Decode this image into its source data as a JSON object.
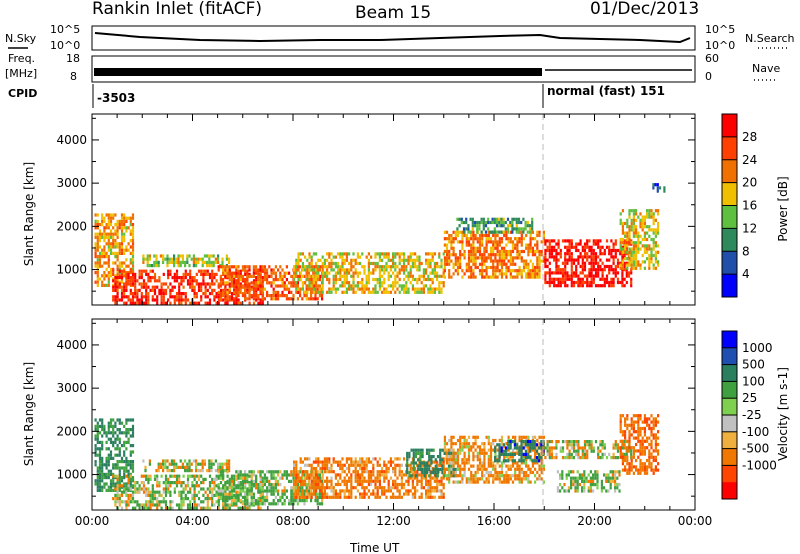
{
  "header": {
    "station": "Rankin Inlet (fitACF)",
    "beam": "Beam 15",
    "date": "01/Dec/2013"
  },
  "status_panel": {
    "nsky_label": "N.Sky",
    "nsearch_label": "N.Search",
    "freq_label_line1": "Freq.",
    "freq_label_line2": "[MHz]",
    "nave_label": "Nave",
    "cpid_label": "CPID",
    "noise_ticks": [
      "10^5",
      "10^0"
    ],
    "freq_ticks": [
      "18",
      "8"
    ],
    "nave_ticks": [
      "60",
      "0"
    ],
    "cpid_segments": [
      {
        "start_hour": 0.0,
        "label": "-3503"
      },
      {
        "start_hour": 18.1,
        "label": "normal (fast) 151"
      }
    ]
  },
  "colors": {
    "power_scale": [
      "#0000ff",
      "#1f4fa8",
      "#2e8a5a",
      "#5fbf3f",
      "#f0c000",
      "#f07000",
      "#ff4000",
      "#ff0000"
    ],
    "velocity_scale": [
      "#ff0000",
      "#ff4500",
      "#f07800",
      "#f0b040",
      "#c0c0c0",
      "#7fd04f",
      "#3fa03f",
      "#2a7f5f",
      "#1f4fb0",
      "#0000ff"
    ]
  },
  "chart_data": [
    {
      "type": "heatmap",
      "title": "",
      "quantity": "Power",
      "xlabel": "",
      "ylabel": "Slant Range [km]",
      "x_unit": "hours UT",
      "xlim": [
        0,
        24
      ],
      "ylim": [
        180,
        4600
      ],
      "x_ticks": [
        "00:00",
        "04:00",
        "08:00",
        "12:00",
        "16:00",
        "20:00",
        "00:00"
      ],
      "y_ticks": [
        1000,
        2000,
        3000,
        4000
      ],
      "colorbar": {
        "label": "Power [dB]",
        "range": [
          0,
          32
        ],
        "ticks": [
          4,
          8,
          12,
          16,
          20,
          24,
          28
        ]
      },
      "regions": [
        {
          "x": [
            0.1,
            1.6
          ],
          "y": [
            600,
            2300
          ],
          "value": 20
        },
        {
          "x": [
            0.8,
            6.8
          ],
          "y": [
            250,
            1000
          ],
          "value": 28
        },
        {
          "x": [
            2.0,
            5.5
          ],
          "y": [
            1100,
            1350
          ],
          "value": 16
        },
        {
          "x": [
            5.0,
            9.2
          ],
          "y": [
            350,
            1100
          ],
          "value": 24
        },
        {
          "x": [
            8.0,
            14.0
          ],
          "y": [
            500,
            1400
          ],
          "value": 18
        },
        {
          "x": [
            14.0,
            18.0
          ],
          "y": [
            800,
            1900
          ],
          "value": 22
        },
        {
          "x": [
            14.5,
            17.5
          ],
          "y": [
            1900,
            2200
          ],
          "value": 12
        },
        {
          "x": [
            18.0,
            21.5
          ],
          "y": [
            650,
            1700
          ],
          "value": 30
        },
        {
          "x": [
            21.0,
            22.5
          ],
          "y": [
            1000,
            2400
          ],
          "value": 18
        },
        {
          "x": [
            22.3,
            22.8
          ],
          "y": [
            2800,
            3000
          ],
          "value": 6
        }
      ]
    },
    {
      "type": "heatmap",
      "title": "",
      "quantity": "Velocity",
      "xlabel": "Time UT",
      "ylabel": "Slant Range [km]",
      "x_unit": "hours UT",
      "xlim": [
        0,
        24
      ],
      "ylim": [
        180,
        4600
      ],
      "x_ticks": [
        "00:00",
        "04:00",
        "08:00",
        "12:00",
        "16:00",
        "20:00",
        "00:00"
      ],
      "y_ticks": [
        1000,
        2000,
        3000,
        4000
      ],
      "colorbar": {
        "label": "Velocity [m s-1]",
        "tick_labels": [
          "1000",
          "500",
          "100",
          "25",
          "-25",
          "-100",
          "-500",
          "-1000"
        ]
      },
      "regions": [
        {
          "x": [
            0.1,
            1.6
          ],
          "y": [
            600,
            2300
          ],
          "value": 500
        },
        {
          "x": [
            0.8,
            6.8
          ],
          "y": [
            250,
            1000
          ],
          "value": 100
        },
        {
          "x": [
            2.0,
            5.5
          ],
          "y": [
            1100,
            1350
          ],
          "value": 0
        },
        {
          "x": [
            5.0,
            9.2
          ],
          "y": [
            350,
            1100
          ],
          "value": 150
        },
        {
          "x": [
            8.0,
            14.0
          ],
          "y": [
            500,
            1400
          ],
          "value": -300
        },
        {
          "x": [
            12.5,
            14.5
          ],
          "y": [
            1000,
            1600
          ],
          "value": 700
        },
        {
          "x": [
            14.0,
            18.0
          ],
          "y": [
            800,
            1900
          ],
          "value": -200
        },
        {
          "x": [
            16.0,
            18.0
          ],
          "y": [
            1300,
            1800
          ],
          "value": 800
        },
        {
          "x": [
            18.0,
            21.5
          ],
          "y": [
            1400,
            1800
          ],
          "value": 0
        },
        {
          "x": [
            18.5,
            21.0
          ],
          "y": [
            650,
            1100
          ],
          "value": 150
        },
        {
          "x": [
            21.0,
            22.5
          ],
          "y": [
            1000,
            2400
          ],
          "value": -400
        }
      ]
    }
  ]
}
